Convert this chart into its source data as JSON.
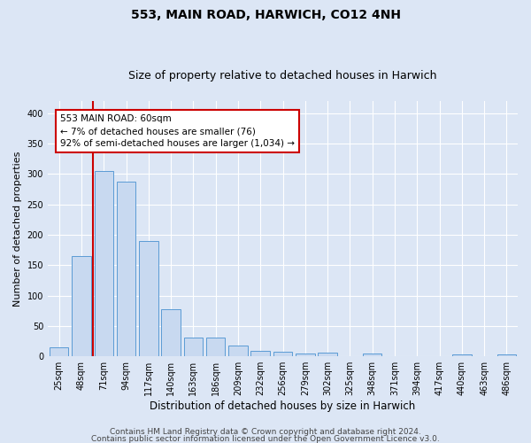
{
  "title": "553, MAIN ROAD, HARWICH, CO12 4NH",
  "subtitle": "Size of property relative to detached houses in Harwich",
  "xlabel": "Distribution of detached houses by size in Harwich",
  "ylabel": "Number of detached properties",
  "categories": [
    "25sqm",
    "48sqm",
    "71sqm",
    "94sqm",
    "117sqm",
    "140sqm",
    "163sqm",
    "186sqm",
    "209sqm",
    "232sqm",
    "256sqm",
    "279sqm",
    "302sqm",
    "325sqm",
    "348sqm",
    "371sqm",
    "394sqm",
    "417sqm",
    "440sqm",
    "463sqm",
    "486sqm"
  ],
  "values": [
    15,
    165,
    305,
    288,
    190,
    77,
    31,
    31,
    18,
    9,
    8,
    5,
    6,
    0,
    5,
    0,
    0,
    0,
    3,
    0,
    3
  ],
  "bar_color": "#c8d9f0",
  "bar_edge_color": "#5b9bd5",
  "vline_color": "#cc0000",
  "annotation_text": "553 MAIN ROAD: 60sqm\n← 7% of detached houses are smaller (76)\n92% of semi-detached houses are larger (1,034) →",
  "annotation_box_color": "#ffffff",
  "annotation_box_edge": "#cc0000",
  "background_color": "#dce6f5",
  "plot_bg_color": "#dce6f5",
  "grid_color": "#ffffff",
  "footer_line1": "Contains HM Land Registry data © Crown copyright and database right 2024.",
  "footer_line2": "Contains public sector information licensed under the Open Government Licence v3.0.",
  "ylim": [
    0,
    420
  ],
  "title_fontsize": 10,
  "subtitle_fontsize": 9,
  "xlabel_fontsize": 8.5,
  "ylabel_fontsize": 8,
  "tick_fontsize": 7,
  "footer_fontsize": 6.5,
  "annot_fontsize": 7.5
}
